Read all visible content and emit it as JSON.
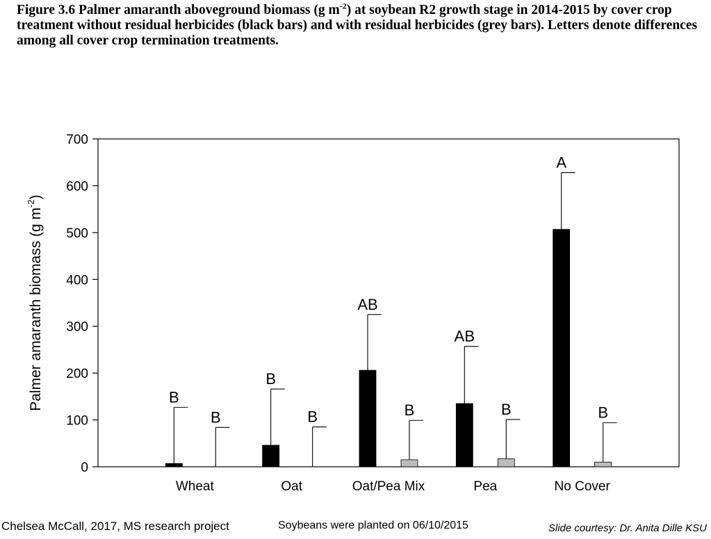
{
  "caption": {
    "prefix": "Figure 3.6 Palmer amaranth aboveground biomass (g m",
    "sup": "-2",
    "suffix": ") at soybean R2 growth stage in 2014-2015 by cover crop treatment without residual herbicides (black bars) and with residual herbicides (grey bars).  Letters denote differences among all cover crop termination treatments."
  },
  "chart_data": {
    "type": "bar",
    "ylabel": "Palmer amaranth biomass (g m",
    "ylabel_sup": "-2",
    "ylabel_close": ")",
    "ylim": [
      0,
      700
    ],
    "yticks": [
      0,
      100,
      200,
      300,
      400,
      500,
      600,
      700
    ],
    "categories": [
      "Wheat",
      "Oat",
      "Oat/Pea Mix",
      "Pea",
      "No Cover"
    ],
    "series": [
      {
        "color": "#000000",
        "values": [
          7,
          46,
          206,
          135,
          507
        ],
        "error_upper": [
          127,
          166,
          325,
          257,
          628
        ],
        "letters": [
          "B",
          "B",
          "AB",
          "AB",
          "A"
        ]
      },
      {
        "color": "#bdbdbd",
        "values": [
          0,
          0,
          15,
          17,
          10
        ],
        "error_upper": [
          84,
          85,
          99,
          101,
          94
        ],
        "letters": [
          "B",
          "B",
          "B",
          "B",
          "B"
        ]
      }
    ]
  },
  "footer": {
    "left": "Chelsea McCall, 2017, MS research project",
    "middle": "Soybeans were planted on 06/10/2015",
    "right": "Slide courtesy: Dr. Anita Dille KSU"
  }
}
